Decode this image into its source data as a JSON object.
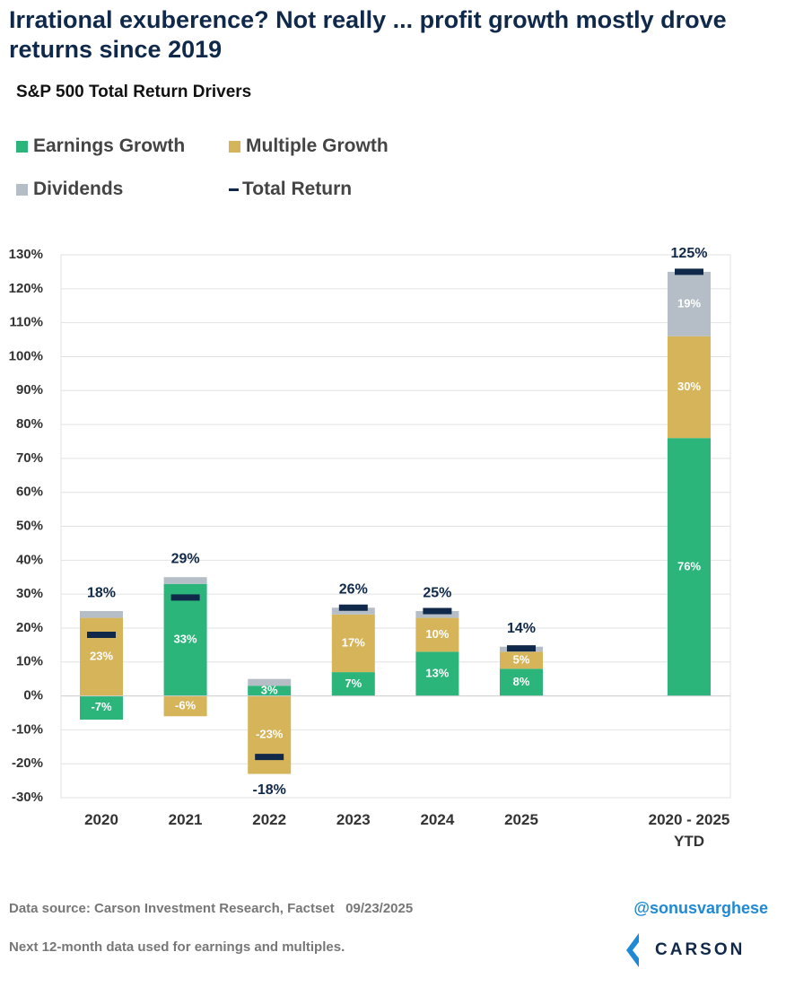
{
  "chart_data": {
    "type": "bar",
    "stacked": true,
    "title": "Irrational exuberence? Not really ... profit growth mostly drove returns since 2019",
    "subtitle": "S&P 500 Total Return Drivers",
    "categories": [
      "2020",
      "2021",
      "2022",
      "2023",
      "2024",
      "2025",
      "2020 - 2025 YTD"
    ],
    "series": [
      {
        "name": "Earnings Growth",
        "color": "#2bb57b",
        "values": [
          -7,
          33,
          3,
          7,
          13,
          8,
          76
        ],
        "value_labels": [
          "-7%",
          "33%",
          "3%",
          "7%",
          "13%",
          "8%",
          "76%"
        ]
      },
      {
        "name": "Multiple Growth",
        "color": "#d6b45a",
        "values": [
          23,
          -6,
          -23,
          17,
          10,
          5,
          30
        ],
        "value_labels": [
          "23%",
          "-6%",
          "-23%",
          "17%",
          "10%",
          "5%",
          "30%"
        ]
      },
      {
        "name": "Dividends",
        "color": "#b5bec6",
        "values": [
          2,
          2,
          2,
          2,
          2,
          1.5,
          19
        ],
        "value_labels": [
          null,
          null,
          null,
          null,
          null,
          null,
          "19%"
        ]
      }
    ],
    "total": {
      "name": "Total Return",
      "color": "#10294a",
      "values": [
        18,
        29,
        -18,
        26,
        25,
        14,
        125
      ],
      "value_labels": [
        "18%",
        "29%",
        "-18%",
        "26%",
        "25%",
        "14%",
        "125%"
      ]
    },
    "ylim": [
      -30,
      130
    ],
    "yticks": [
      {
        "value": -30,
        "label": "-30%"
      },
      {
        "value": -20,
        "label": "-20%"
      },
      {
        "value": -10,
        "label": "-10%"
      },
      {
        "value": 0,
        "label": "0%"
      },
      {
        "value": 10,
        "label": "10%"
      },
      {
        "value": 20,
        "label": "20%"
      },
      {
        "value": 30,
        "label": "30%"
      },
      {
        "value": 40,
        "label": "40%"
      },
      {
        "value": 50,
        "label": "50%"
      },
      {
        "value": 60,
        "label": "60%"
      },
      {
        "value": 70,
        "label": "70%"
      },
      {
        "value": 80,
        "label": "80%"
      },
      {
        "value": 90,
        "label": "90%"
      },
      {
        "value": 100,
        "label": "100%"
      },
      {
        "value": 110,
        "label": "110%"
      },
      {
        "value": 120,
        "label": "120%"
      },
      {
        "value": 130,
        "label": "130%"
      }
    ],
    "grid": true,
    "source": "Data source: Carson Investment Research, Factset   09/23/2025",
    "note": "Next 12-month data used for earnings and multiples.",
    "handle": "@sonusvarghese",
    "logo": "CARSON"
  }
}
